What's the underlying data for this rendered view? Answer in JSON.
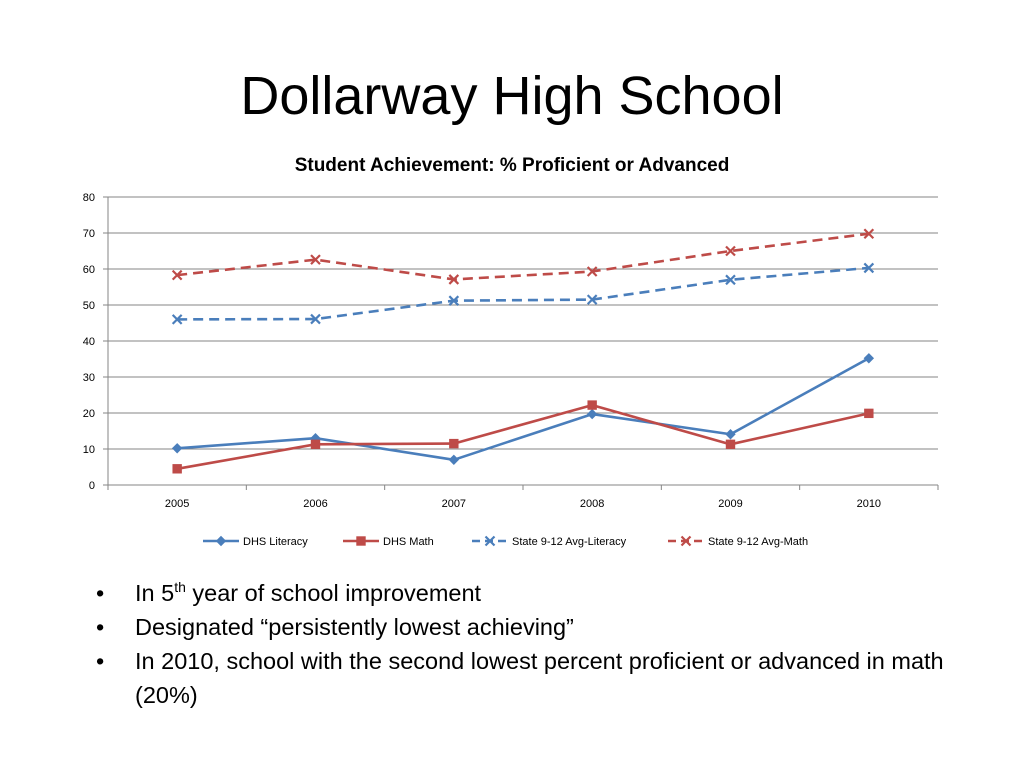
{
  "slide": {
    "title": "Dollarway High School"
  },
  "chart_data": {
    "type": "line",
    "title": "Student Achievement: % Proficient or Advanced",
    "xlabel": "",
    "ylabel": "",
    "categories": [
      "2005",
      "2006",
      "2007",
      "2008",
      "2009",
      "2010"
    ],
    "ylim": [
      0,
      80
    ],
    "yticks": [
      0,
      10,
      20,
      30,
      40,
      50,
      60,
      70,
      80
    ],
    "grid": true,
    "legend": "bottom",
    "series": [
      {
        "name": "DHS Literacy",
        "values": [
          10.2,
          13.0,
          7.0,
          19.7,
          14.1,
          35.2
        ],
        "color": "#4a7ebb",
        "dashed": false,
        "marker": "diamond"
      },
      {
        "name": "DHS Math",
        "values": [
          4.5,
          11.3,
          11.5,
          22.2,
          11.3,
          19.9
        ],
        "color": "#be4b48",
        "dashed": false,
        "marker": "square"
      },
      {
        "name": "State 9-12 Avg-Literacy",
        "values": [
          46.0,
          46.1,
          51.2,
          51.5,
          57.0,
          60.3
        ],
        "color": "#4a7ebb",
        "dashed": true,
        "marker": "x"
      },
      {
        "name": "State 9-12 Avg-Math",
        "values": [
          58.3,
          62.6,
          57.1,
          59.3,
          65.0,
          69.8
        ],
        "color": "#be4b48",
        "dashed": true,
        "marker": "x"
      }
    ]
  },
  "bullets": [
    {
      "prefix": "In 5",
      "sup": "th",
      "suffix": " year of school improvement"
    },
    {
      "prefix": "Designated “persistently lowest achieving”",
      "sup": "",
      "suffix": ""
    },
    {
      "prefix": "In 2010, school with the second lowest percent proficient or advanced in math (20%)",
      "sup": "",
      "suffix": ""
    }
  ],
  "bullet_symbol": "•"
}
